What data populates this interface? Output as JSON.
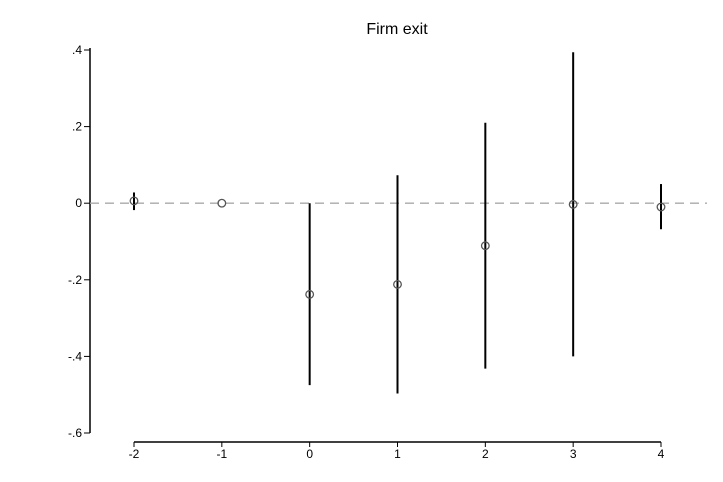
{
  "chart_data": {
    "type": "scatter",
    "title": "Firm exit",
    "xlabel": "",
    "ylabel": "",
    "x_ticks": [
      "-2",
      "-1",
      "0",
      "1",
      "2",
      "3",
      "4"
    ],
    "y_ticks": [
      ".4",
      ".2",
      "0",
      "-.2",
      "-.4",
      "-.6"
    ],
    "xlim": [
      -2,
      4
    ],
    "ylim": [
      -0.6,
      0.4
    ],
    "reference_line": 0,
    "series": [
      {
        "points": [
          {
            "x": -2,
            "y": 0.006,
            "lo": -0.018,
            "hi": 0.028
          },
          {
            "x": -1,
            "y": 0.0,
            "lo": 0.0,
            "hi": 0.0
          },
          {
            "x": 0,
            "y": -0.238,
            "lo": -0.475,
            "hi": 0.0
          },
          {
            "x": 1,
            "y": -0.212,
            "lo": -0.497,
            "hi": 0.073
          },
          {
            "x": 2,
            "y": -0.111,
            "lo": -0.432,
            "hi": 0.21
          },
          {
            "x": 3,
            "y": -0.003,
            "lo": -0.4,
            "hi": 0.394
          },
          {
            "x": 4,
            "y": -0.01,
            "lo": -0.068,
            "hi": 0.05
          }
        ]
      }
    ],
    "grid": false,
    "colors": {
      "marker": "#555555",
      "ci": "#000000",
      "reference": "#aaaaaa"
    }
  }
}
